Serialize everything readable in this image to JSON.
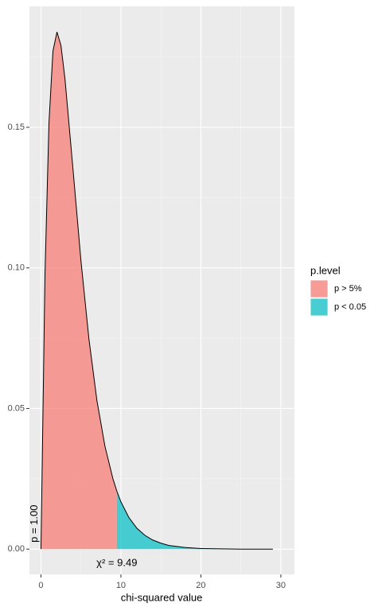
{
  "chart_data": {
    "type": "area",
    "x_label": "chi-squared value",
    "legend_title": "p.level",
    "xlim": [
      -1.44,
      31.7
    ],
    "ylim": [
      -0.009,
      0.193
    ],
    "xticks": [
      0,
      10,
      20,
      30
    ],
    "yticks": [
      {
        "value": 0,
        "label": "0.00"
      },
      {
        "value": 0.05,
        "label": "0.05"
      },
      {
        "value": 0.1,
        "label": "0.10"
      },
      {
        "value": 0.15,
        "label": "0.15"
      }
    ],
    "grid": true,
    "alpha": 0.7,
    "series": [
      {
        "name": "p > 5%",
        "color": "#F8766D",
        "x": [
          0,
          0.5,
          1,
          1.5,
          2,
          2.5,
          3,
          4,
          5,
          6,
          7,
          8,
          9,
          9.49
        ],
        "values": [
          0,
          0.0974,
          0.1516,
          0.1771,
          0.1839,
          0.1791,
          0.1673,
          0.1353,
          0.1026,
          0.0747,
          0.0528,
          0.0366,
          0.025,
          0.0206
        ]
      },
      {
        "name": "p < 0.05",
        "color": "#00BFC4",
        "x": [
          9.49,
          10,
          11,
          12,
          13,
          14,
          15,
          16,
          18,
          20,
          25,
          29
        ],
        "values": [
          0.0206,
          0.0168,
          0.0112,
          0.0074,
          0.0049,
          0.0032,
          0.0021,
          0.0013,
          0.0006,
          0.0002,
          0,
          0
        ]
      }
    ],
    "annotations": [
      {
        "text": "p = 1.00",
        "x": 0,
        "y": 0
      },
      {
        "text": "χ² = 9.49",
        "x": 9.49,
        "y": 0
      }
    ]
  }
}
